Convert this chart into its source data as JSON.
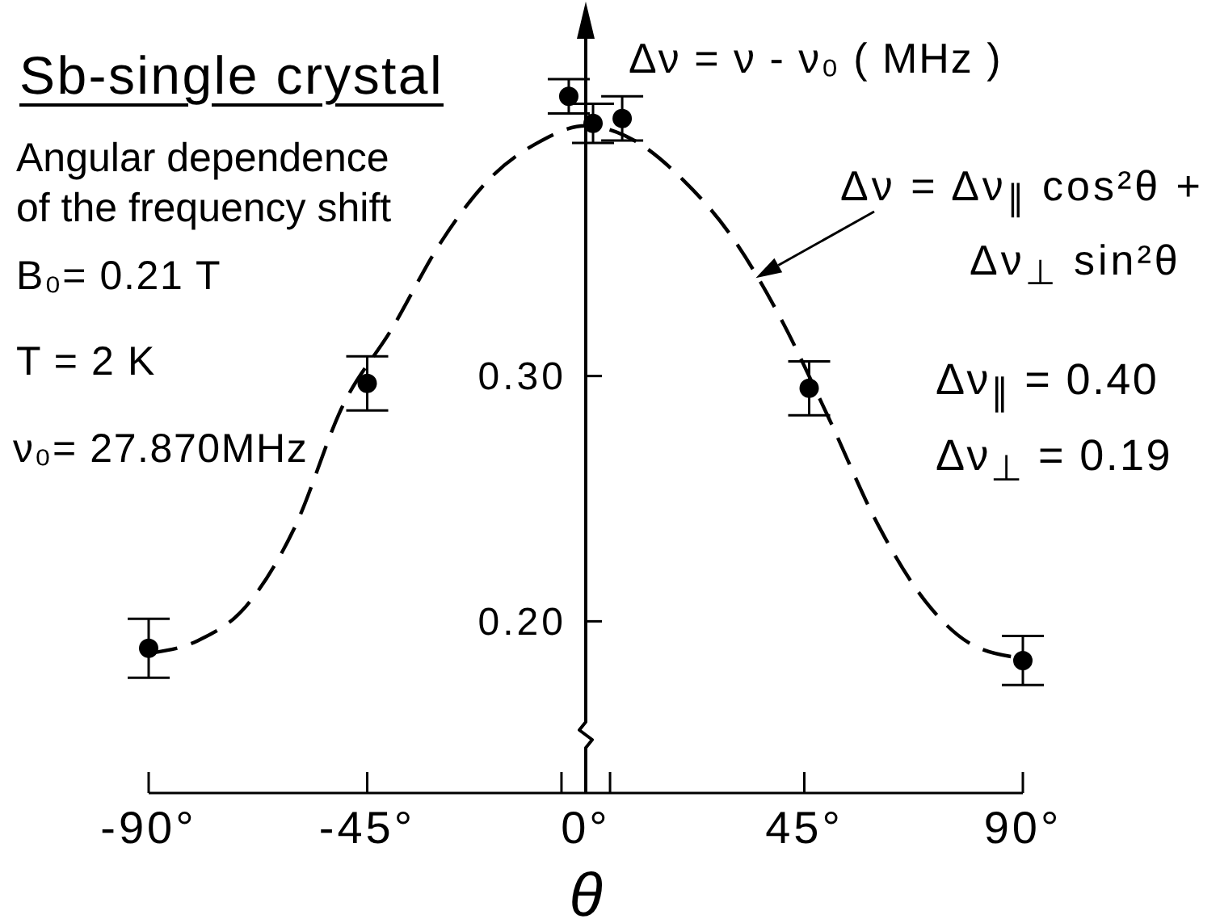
{
  "chart_data": {
    "type": "scatter",
    "title": "Sb-single crystal",
    "xlabel": "θ",
    "ylabel": "Δν = ν - ν₀ ( MHz )",
    "annotations": [
      "Angular dependence\nof the frequency shift",
      "B₀= 0.21 T",
      "T = 2 K",
      "ν₀= 27.870MHz",
      {
        "text": "Δν = Δν$_{∥}$ cos²θ +\nΔν$_{⊥}$ sin²θ",
        "x": 35,
        "y": 0.34
      },
      "Δν$_{∥}$ = 0.40",
      "Δν$_{⊥}$ = 0.19"
    ],
    "xlim": [
      -90,
      90
    ],
    "xticks": [
      {
        "value": -90,
        "label": "-90°"
      },
      {
        "value": -45,
        "label": "-45°"
      },
      {
        "value": -5,
        "label": null
      },
      {
        "value": 0,
        "label": "0°"
      },
      {
        "value": 5,
        "label": null
      },
      {
        "value": 45,
        "label": "45°"
      },
      {
        "value": 90,
        "label": "90°"
      }
    ],
    "ylim": [
      0.13,
      0.45
    ],
    "yticks": [
      {
        "value": 0.2,
        "label": "0.20"
      },
      {
        "value": 0.3,
        "label": "0.30"
      }
    ],
    "grid": false,
    "legend": false,
    "series": [
      {
        "type": "line",
        "color": "#000000",
        "marker": "none",
        "line_style": "dashed",
        "x": [
          -90,
          -80,
          -70,
          -60,
          -50,
          -40,
          -30,
          -20,
          -10,
          0,
          10,
          20,
          30,
          40,
          50,
          60,
          70,
          80,
          90
        ],
        "values": [
          0.187,
          0.192,
          0.206,
          0.238,
          0.288,
          0.319,
          0.354,
          0.38,
          0.395,
          0.402,
          0.396,
          0.38,
          0.357,
          0.324,
          0.283,
          0.24,
          0.208,
          0.19,
          0.185
        ]
      },
      {
        "color": "#000000",
        "marker": "circle",
        "x": [
          -90,
          -45,
          -3.5,
          1.5,
          7.5,
          46,
          90
        ],
        "values": [
          0.189,
          0.297,
          0.414,
          0.403,
          0.405,
          0.295,
          0.184
        ],
        "errors": [
          0.012,
          0.011,
          0.007,
          0.008,
          0.009,
          0.011,
          0.01
        ]
      }
    ]
  }
}
